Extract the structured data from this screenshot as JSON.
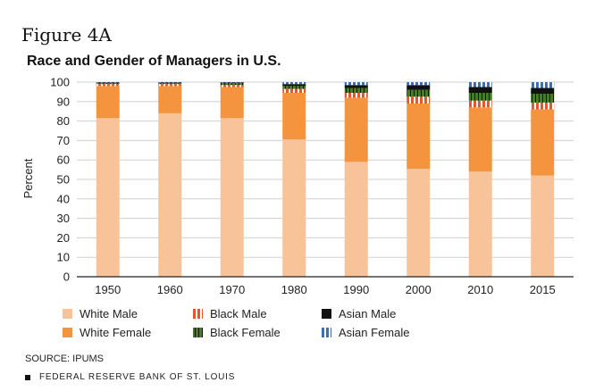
{
  "figure_label": "Figure 4A",
  "source": "SOURCE: IPUMS",
  "publisher": "FEDERAL RESERVE BANK OF ST. LOUIS",
  "colors": {
    "White Male": "#f9c39a",
    "White Female": "#f5943f",
    "Black Male": "#e4572e",
    "Black Female": "#4a7a2c",
    "Asian Male": "#111111",
    "Asian Female": "#3d6fb5"
  },
  "chart_data": {
    "type": "bar",
    "stacked": true,
    "title": "Race and Gender of Managers in U.S.",
    "xlabel": "",
    "ylabel": "Percent",
    "ylim": [
      0,
      100
    ],
    "yticks": [
      0,
      10,
      20,
      30,
      40,
      50,
      60,
      70,
      80,
      90,
      100
    ],
    "categories": [
      "1950",
      "1960",
      "1970",
      "1980",
      "1990",
      "2000",
      "2010",
      "2015"
    ],
    "series": [
      {
        "name": "White Male",
        "pattern": "solid",
        "values": [
          81.5,
          84,
          81.5,
          70.5,
          59,
          55.5,
          54,
          52
        ]
      },
      {
        "name": "White Female",
        "pattern": "solid",
        "values": [
          16.5,
          14,
          16,
          24,
          33,
          33.5,
          33,
          34
        ]
      },
      {
        "name": "Black Male",
        "pattern": "v-stripe",
        "values": [
          1,
          1,
          1,
          2,
          2.5,
          3.5,
          3.5,
          3.5
        ]
      },
      {
        "name": "Black Female",
        "pattern": "v-stripe",
        "values": [
          0.5,
          0.5,
          1,
          1.5,
          2.5,
          3.5,
          4,
          4.5
        ]
      },
      {
        "name": "Asian Male",
        "pattern": "solid",
        "values": [
          0.3,
          0.3,
          0.3,
          1,
          1.5,
          2.5,
          3,
          3
        ]
      },
      {
        "name": "Asian Female",
        "pattern": "v-stripe",
        "values": [
          0.2,
          0.2,
          0.2,
          1,
          1.5,
          1.5,
          2.5,
          3
        ]
      }
    ],
    "legend_position": "bottom",
    "grid": true
  }
}
